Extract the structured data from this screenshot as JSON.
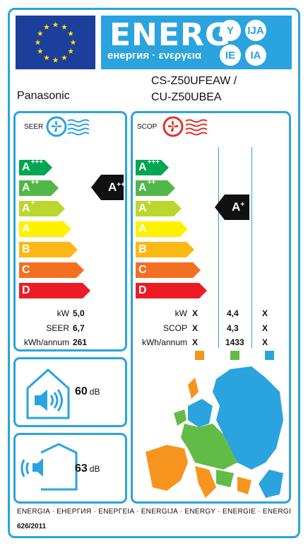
{
  "header": {
    "energy_word": "ENERG",
    "energy_subtitle": "енергия · ενεργεια",
    "language_badges": [
      "Y",
      "IJA",
      "IE",
      "IA"
    ],
    "colors": {
      "eu_blue": "#1b3f9a",
      "label_blue": "#2aa3df",
      "star_yellow": "#ffdd00"
    },
    "flag_icon": "eu-flag-icon"
  },
  "supplier": "Panasonic",
  "model": {
    "indoor": "CS-Z50UFEAW /",
    "outdoor": "CU-Z50UBEA"
  },
  "scale_classes": [
    {
      "letter": "A",
      "plus": "+++",
      "color": "#00a651"
    },
    {
      "letter": "A",
      "plus": "++",
      "color": "#51b747"
    },
    {
      "letter": "A",
      "plus": "+",
      "color": "#bdd62e"
    },
    {
      "letter": "A",
      "plus": "",
      "color": "#fff200"
    },
    {
      "letter": "B",
      "plus": "",
      "color": "#fcb814"
    },
    {
      "letter": "C",
      "plus": "",
      "color": "#f36f21"
    },
    {
      "letter": "D",
      "plus": "",
      "color": "#ed1c24"
    }
  ],
  "seer": {
    "title": "SEER",
    "icon": "cooling-fan-icon",
    "rating": {
      "letter": "A",
      "plus": "++"
    },
    "rows": [
      {
        "label": "kW",
        "value": "5,0"
      },
      {
        "label": "SEER",
        "value": "6,7"
      },
      {
        "label": "kWh/annum",
        "value": "261"
      }
    ]
  },
  "scop": {
    "title": "SCOP",
    "icon": "heating-fan-icon",
    "rating": {
      "letter": "A",
      "plus": "+"
    },
    "rows": [
      {
        "label": "kW",
        "warmer": "X",
        "average": "4,4",
        "colder": "X"
      },
      {
        "label": "SCOP",
        "warmer": "X",
        "average": "4,3",
        "colder": "X"
      },
      {
        "label": "kWh/annum",
        "warmer": "X",
        "average": "1433",
        "colder": "X"
      }
    ],
    "zone_colors": {
      "warmer": "#f7941d",
      "average": "#62bb46",
      "colder": "#2aa3df"
    },
    "map_icon": "europe-climate-zones-map-icon"
  },
  "noise": {
    "indoor": {
      "value": "60",
      "unit": "dB",
      "icon": "indoor-speaker-icon"
    },
    "outdoor": {
      "value": "63",
      "unit": "dB",
      "icon": "outdoor-speaker-icon"
    }
  },
  "footer": {
    "languages": "ENERGIA · ЕНЕРГИЯ · ΕΝΕΡΓΕΙΑ · ENERGIJA · ENERGY · ENERGIE · ENERGI",
    "regulation": "626/2011"
  }
}
